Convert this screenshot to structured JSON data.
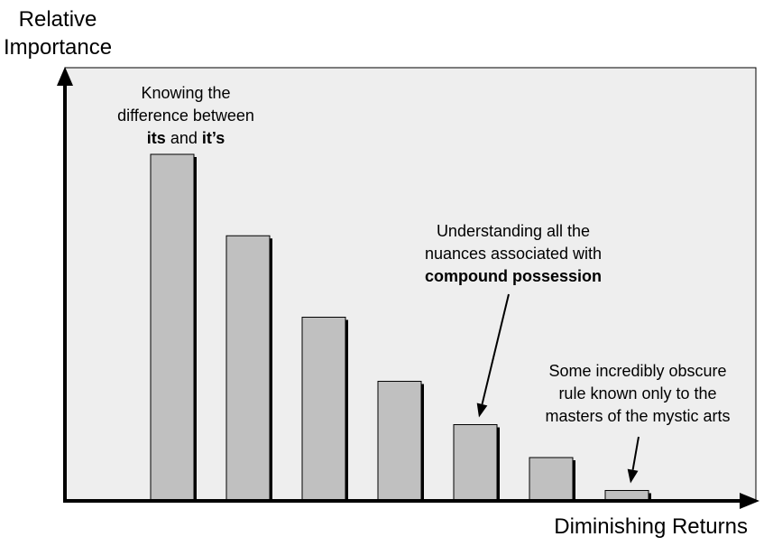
{
  "chart_data": {
    "type": "bar",
    "title": "",
    "ylabel_lines": [
      "Relative",
      "Importance"
    ],
    "xlabel": "Diminishing Returns",
    "values": [
      100,
      76.5,
      53,
      34.5,
      22,
      12.5,
      3
    ],
    "ylim": [
      0,
      125
    ],
    "grid": false,
    "legend": "none",
    "colors": {
      "plot_bg": "#eeeeee",
      "bar_fill": "#c0c0c0",
      "bar_shadow": "#000000",
      "axis": "#000000",
      "arrow": "#000000"
    },
    "annotations": [
      {
        "id": "note1",
        "bar_index": 0,
        "lines": [
          [
            {
              "text": "Knowing the",
              "bold": false
            }
          ],
          [
            {
              "text": "difference between",
              "bold": false
            }
          ],
          [
            {
              "text": "its",
              "bold": true
            },
            {
              "text": " and ",
              "bold": false
            },
            {
              "text": "it’s",
              "bold": true
            }
          ]
        ],
        "arrow": false
      },
      {
        "id": "note2",
        "bar_index": 4,
        "lines": [
          [
            {
              "text": "Understanding all the",
              "bold": false
            }
          ],
          [
            {
              "text": "nuances associated with",
              "bold": false
            }
          ],
          [
            {
              "text": "compound possession",
              "bold": true
            }
          ]
        ],
        "arrow": true
      },
      {
        "id": "note3",
        "bar_index": 6,
        "lines": [
          [
            {
              "text": "Some incredibly obscure",
              "bold": false
            }
          ],
          [
            {
              "text": "rule known only to the",
              "bold": false
            }
          ],
          [
            {
              "text": "masters of the mystic arts",
              "bold": false
            }
          ]
        ],
        "arrow": true
      }
    ]
  }
}
